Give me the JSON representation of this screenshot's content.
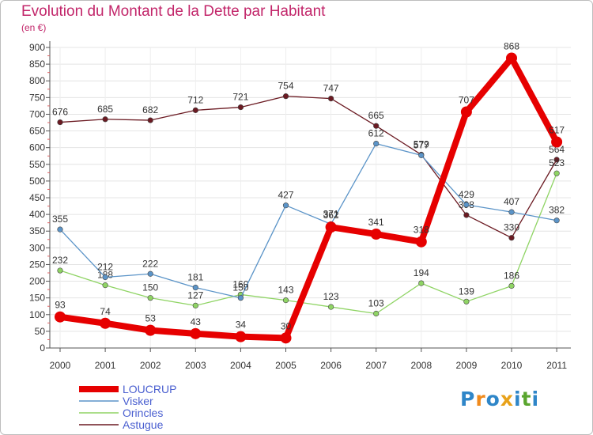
{
  "chart_data": {
    "type": "line",
    "title": "Evolution du Montant de la Dette par Habitant",
    "subtitle": "(en €)",
    "x": [
      "2000",
      "2001",
      "2002",
      "2003",
      "2004",
      "2005",
      "2006",
      "2007",
      "2008",
      "2009",
      "2010",
      "2011"
    ],
    "yticks": [
      0,
      50,
      100,
      150,
      200,
      250,
      300,
      350,
      400,
      450,
      500,
      550,
      600,
      650,
      700,
      750,
      800,
      850,
      900
    ],
    "ylim": [
      0,
      900
    ],
    "series": [
      {
        "name": "Astugue",
        "color": "#6b1a22",
        "values": [
          676,
          685,
          682,
          712,
          721,
          754,
          747,
          665,
          579,
          398,
          330,
          564
        ]
      },
      {
        "name": "Orincles",
        "color": "#8fd464",
        "values": [
          232,
          188,
          150,
          127,
          160,
          143,
          123,
          103,
          194,
          139,
          186,
          523
        ]
      },
      {
        "name": "Visker",
        "color": "#5b94c8",
        "values": [
          355,
          212,
          222,
          181,
          150,
          427,
          371,
          612,
          577,
          429,
          407,
          382
        ]
      },
      {
        "name": "LOUCRUP",
        "color": "#e60000",
        "values": [
          93,
          74,
          53,
          43,
          34,
          30,
          362,
          341,
          318,
          707,
          868,
          617
        ]
      }
    ],
    "legend": [
      "LOUCRUP",
      "Visker",
      "Orincles",
      "Astugue"
    ],
    "legend_position": "bottom-left"
  },
  "logo": {
    "text": "Proxiti",
    "letters": [
      "P",
      "r",
      "o",
      "x",
      "i",
      "t",
      "i"
    ],
    "colors": [
      "#2f86c8",
      "#f08a1c",
      "#2f86c8",
      "#e8a21a",
      "#2f86c8",
      "#5aa52e",
      "#2f86c8"
    ]
  }
}
